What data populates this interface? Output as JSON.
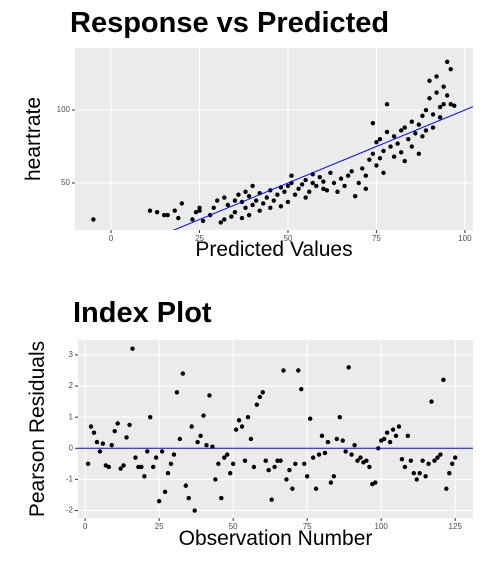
{
  "chart_data": [
    {
      "type": "scatter",
      "title": "Response vs Predicted",
      "x_label": "Predicted Values",
      "y_label": "heartrate",
      "xlim": [
        -10.2,
        102.3
      ],
      "ylim": [
        17.8,
        142.5
      ],
      "xticks": [
        0,
        25,
        50,
        75,
        100
      ],
      "yticks": [
        50,
        100
      ],
      "grid": true,
      "color": "#000000",
      "line_color": "#0000ff",
      "abline": {
        "intercept": 0,
        "slope": 1
      },
      "x": [
        -5,
        11,
        13,
        15,
        16,
        18,
        19,
        20,
        23,
        24,
        25,
        25,
        26,
        28,
        29,
        30,
        31,
        32,
        32,
        33,
        34,
        35,
        35,
        36,
        37,
        37,
        38,
        38,
        39,
        39,
        40,
        40,
        41,
        42,
        42,
        43,
        44,
        45,
        45,
        46,
        47,
        48,
        48,
        49,
        50,
        50,
        51,
        51,
        52,
        53,
        54,
        55,
        55,
        56,
        57,
        57,
        58,
        59,
        60,
        60,
        61,
        62,
        63,
        64,
        65,
        66,
        67,
        68,
        69,
        70,
        71,
        72,
        72,
        73,
        74,
        74,
        75,
        75,
        76,
        76,
        77,
        77,
        78,
        78,
        79,
        80,
        80,
        81,
        82,
        82,
        83,
        83,
        84,
        85,
        85,
        86,
        87,
        87,
        88,
        88,
        89,
        89,
        90,
        90,
        91,
        91,
        92,
        92,
        93,
        93,
        94,
        94,
        95,
        95,
        96,
        96,
        97
      ],
      "values": [
        25,
        31,
        30,
        28,
        28,
        31,
        26,
        36,
        25,
        30,
        33,
        31,
        24,
        28,
        33,
        38,
        23,
        25,
        40,
        35,
        27,
        30,
        38,
        42,
        26,
        37,
        33,
        44,
        28,
        41,
        48,
        35,
        38,
        31,
        43,
        36,
        40,
        33,
        45,
        38,
        42,
        34,
        47,
        44,
        48,
        37,
        50,
        55,
        42,
        46,
        49,
        40,
        52,
        44,
        50,
        56,
        48,
        54,
        46,
        51,
        45,
        57,
        50,
        44,
        53,
        48,
        55,
        58,
        41,
        50,
        60,
        55,
        46,
        66,
        70,
        91,
        62,
        78,
        67,
        80,
        72,
        57,
        85,
        104,
        75,
        68,
        82,
        77,
        86,
        71,
        65,
        88,
        80,
        75,
        92,
        84,
        90,
        70,
        96,
        82,
        100,
        86,
        108,
        120,
        97,
        88,
        112,
        123,
        102,
        95,
        116,
        104,
        133,
        110,
        128,
        104,
        103
      ]
    },
    {
      "type": "scatter",
      "title": "Index Plot",
      "x_label": "Observation Number",
      "y_label": "Pearson Residuals",
      "xlim": [
        -2.4,
        131
      ],
      "ylim": [
        -2.24,
        3.48
      ],
      "xticks": [
        0,
        25,
        50,
        75,
        100,
        125
      ],
      "yticks": [
        -2,
        -1,
        0,
        1,
        2,
        3
      ],
      "grid": true,
      "color": "#000000",
      "line_color": "#0000ff",
      "hline": 0,
      "x": [
        1,
        2,
        3,
        4,
        5,
        6,
        7,
        8,
        9,
        10,
        11,
        12,
        13,
        14,
        15,
        16,
        17,
        18,
        19,
        20,
        21,
        22,
        23,
        24,
        25,
        26,
        27,
        28,
        29,
        30,
        31,
        32,
        33,
        34,
        35,
        36,
        37,
        38,
        39,
        40,
        41,
        42,
        43,
        44,
        45,
        46,
        47,
        48,
        49,
        50,
        51,
        52,
        53,
        54,
        55,
        56,
        57,
        58,
        59,
        60,
        61,
        62,
        63,
        64,
        65,
        66,
        67,
        68,
        69,
        70,
        71,
        72,
        73,
        74,
        75,
        76,
        77,
        78,
        79,
        80,
        81,
        82,
        83,
        84,
        85,
        86,
        87,
        88,
        89,
        90,
        91,
        92,
        93,
        94,
        95,
        96,
        97,
        98,
        99,
        100,
        101,
        102,
        103,
        104,
        105,
        106,
        107,
        108,
        109,
        110,
        111,
        112,
        113,
        114,
        115,
        116,
        117,
        118,
        119,
        120,
        121,
        122,
        123,
        124,
        125
      ],
      "values": [
        -0.5,
        0.7,
        0.5,
        0.2,
        -0.1,
        0.15,
        -0.55,
        -0.6,
        0.1,
        0.55,
        0.8,
        -0.65,
        -0.55,
        0.35,
        0.75,
        3.2,
        -0.3,
        -0.6,
        -0.6,
        -0.9,
        -0.1,
        1.0,
        -0.6,
        -0.3,
        -1.7,
        -0.1,
        -1.4,
        -0.8,
        -0.5,
        -0.2,
        1.8,
        0.3,
        2.4,
        -1.2,
        -1.6,
        0.7,
        -2.0,
        0.2,
        0.4,
        1.05,
        0.1,
        1.7,
        0.05,
        -1.0,
        -0.5,
        -1.6,
        -0.3,
        -0.2,
        -0.8,
        -0.5,
        0.6,
        0.9,
        0.7,
        -0.4,
        1.0,
        0.3,
        -0.6,
        1.4,
        1.65,
        1.8,
        -0.4,
        -0.7,
        -1.65,
        -0.6,
        -0.4,
        -0.4,
        2.5,
        -1.0,
        -0.7,
        -1.3,
        -0.5,
        2.5,
        1.9,
        -0.5,
        -0.9,
        0.95,
        -0.3,
        -1.3,
        -0.2,
        0.4,
        -0.15,
        0.2,
        -1.1,
        -0.9,
        0.3,
        1.0,
        0.25,
        -0.1,
        2.6,
        -0.2,
        0.1,
        -0.4,
        -0.3,
        -0.45,
        -0.4,
        -0.6,
        -1.15,
        -1.1,
        0.0,
        0.25,
        0.3,
        0.5,
        0.2,
        0.6,
        0.4,
        0.7,
        -0.35,
        -0.6,
        0.4,
        -0.4,
        -0.8,
        -1.0,
        -0.8,
        -0.4,
        -0.9,
        -0.5,
        1.5,
        -0.4,
        -0.3,
        -0.2,
        2.2,
        -1.3,
        -0.8,
        -0.5,
        -0.3
      ]
    }
  ]
}
